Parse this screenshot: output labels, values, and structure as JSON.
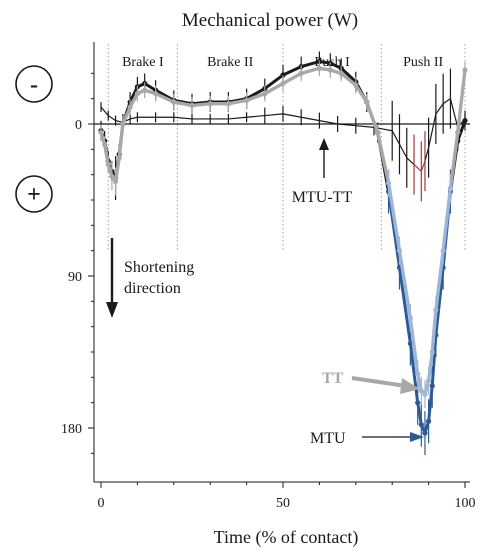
{
  "chart_data": {
    "type": "line",
    "title": "Mechanical power  (W)",
    "xlabel": "Time (% of contact)",
    "ylabel": "",
    "xlim": [
      -2,
      101
    ],
    "ylim": [
      -37,
      200
    ],
    "y_inverted": true,
    "grid": false,
    "x_ticks": [
      0,
      50,
      100
    ],
    "y_ticks": [
      0,
      90,
      180
    ],
    "sign_markers": {
      "negative": "-",
      "positive": "+"
    },
    "phases": [
      {
        "label": "Brake I",
        "start": 2,
        "end": 21
      },
      {
        "label": "Brake II",
        "start": 21,
        "end": 50
      },
      {
        "label": "Push I",
        "start": 50,
        "end": 77
      },
      {
        "label": "Push II",
        "start": 77,
        "end": 100
      }
    ],
    "phase_boundaries": [
      2,
      21,
      50,
      77,
      100
    ],
    "annotations": {
      "shortening": "Shortening\ndirection",
      "mtu_tt": "MTU-TT",
      "tt": "TT",
      "mtu": "MTU"
    },
    "colors": {
      "mtu": "#1a1a1a",
      "tt": "#a8a8a8",
      "mtu_tt": "#1a1a1a",
      "mtu_shortening": "#2d5a94",
      "tt_shortening": "#9cb6d8",
      "mtu_tt_bars": "#a13a3a",
      "phase_lines": "#9aa0aa"
    },
    "series": [
      {
        "name": "MTU",
        "x": [
          0,
          1,
          2,
          3,
          4,
          5,
          6,
          8,
          10,
          12,
          15,
          20,
          25,
          30,
          35,
          40,
          45,
          50,
          55,
          60,
          63,
          66,
          70,
          73,
          76,
          79,
          82,
          85,
          87,
          88,
          89,
          90,
          91,
          92,
          94,
          96,
          98,
          100
        ],
        "y": [
          4,
          10,
          22,
          28,
          32,
          18,
          0,
          -13,
          -22,
          -24,
          -20,
          -14,
          -12,
          -13,
          -13,
          -15,
          -21,
          -29,
          -34,
          -37,
          -36,
          -33,
          -25,
          -13,
          5,
          40,
          85,
          130,
          165,
          178,
          183,
          176,
          155,
          125,
          85,
          40,
          10,
          -2
        ]
      },
      {
        "name": "TT",
        "x": [
          0,
          1,
          2,
          3,
          4,
          5,
          6,
          8,
          10,
          12,
          15,
          20,
          25,
          30,
          35,
          40,
          45,
          50,
          55,
          60,
          63,
          66,
          70,
          73,
          76,
          79,
          82,
          85,
          87,
          88,
          89,
          90,
          91,
          92,
          94,
          96,
          98,
          100
        ],
        "y": [
          5,
          12,
          24,
          31,
          34,
          20,
          0,
          -10,
          -18,
          -20,
          -18,
          -13,
          -11,
          -12,
          -12,
          -14,
          -18,
          -24,
          -30,
          -33,
          -32,
          -30,
          -23,
          -13,
          5,
          35,
          75,
          115,
          148,
          158,
          160,
          152,
          135,
          110,
          75,
          38,
          5,
          -32
        ]
      },
      {
        "name": "MTU-TT",
        "x": [
          0,
          2,
          4,
          6,
          8,
          10,
          15,
          20,
          25,
          30,
          35,
          40,
          45,
          50,
          55,
          60,
          65,
          70,
          75,
          80,
          82,
          84,
          86,
          88,
          89,
          90,
          92,
          94,
          96,
          98,
          100
        ],
        "y": [
          -10,
          -5,
          -2,
          -1,
          -3,
          -4,
          -4,
          -4,
          -3,
          -3,
          -3,
          -4,
          -5,
          -6,
          -4,
          -2,
          0,
          1,
          2,
          4,
          12,
          20,
          24,
          28,
          22,
          14,
          -6,
          -12,
          -15,
          2,
          -3
        ]
      }
    ]
  }
}
